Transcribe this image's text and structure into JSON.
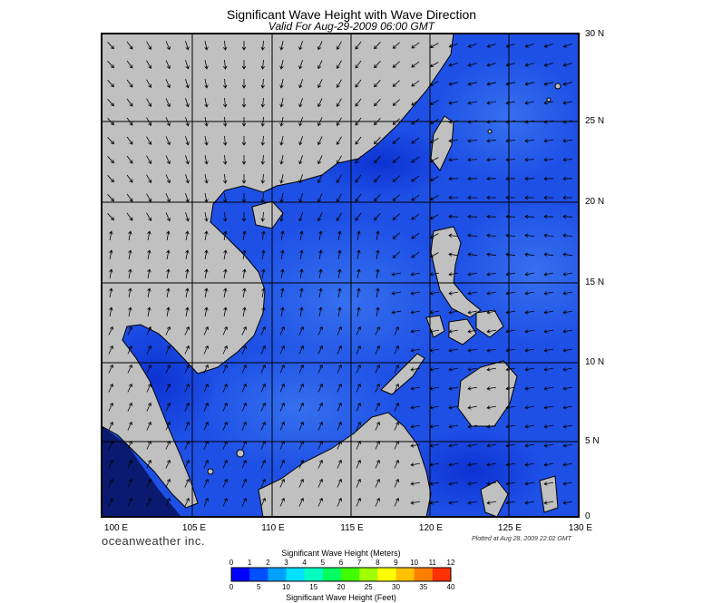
{
  "title": "Significant Wave Height with Wave Direction",
  "subtitle": "Valid For Aug-29-2009 06:00 GMT",
  "map": {
    "lat_labels": [
      "30 N",
      "25 N",
      "20 N",
      "15 N",
      "10 N",
      "5 N",
      "0"
    ],
    "lon_labels": [
      "100 E",
      "105 E",
      "110 E",
      "115 E",
      "120 E",
      "125 E",
      "130 E"
    ],
    "lat_range": [
      0,
      30
    ],
    "lon_range": [
      99,
      130
    ],
    "land_color": "#c0c0c0",
    "ocean_base_color": "#1e50e6"
  },
  "brand": "oceanweather inc.",
  "plotted_note": "Plotted at Aug 28, 2009 22:02 GMT",
  "colorbar": {
    "title_top": "Significant Wave Height (Meters)",
    "title_bottom": "Significant Wave Height (Feet)",
    "meter_ticks": [
      "0",
      "1",
      "2",
      "3",
      "4",
      "5",
      "6",
      "7",
      "8",
      "9",
      "10",
      "11",
      "12"
    ],
    "feet_ticks": [
      "0",
      "5",
      "10",
      "15",
      "20",
      "25",
      "30",
      "35",
      "40"
    ],
    "colors": [
      "#0000ff",
      "#0050ff",
      "#00a0ff",
      "#00e0ff",
      "#00ffc0",
      "#00ff60",
      "#40ff00",
      "#a0ff00",
      "#ffff00",
      "#ffc000",
      "#ff8000",
      "#ff3000"
    ]
  }
}
